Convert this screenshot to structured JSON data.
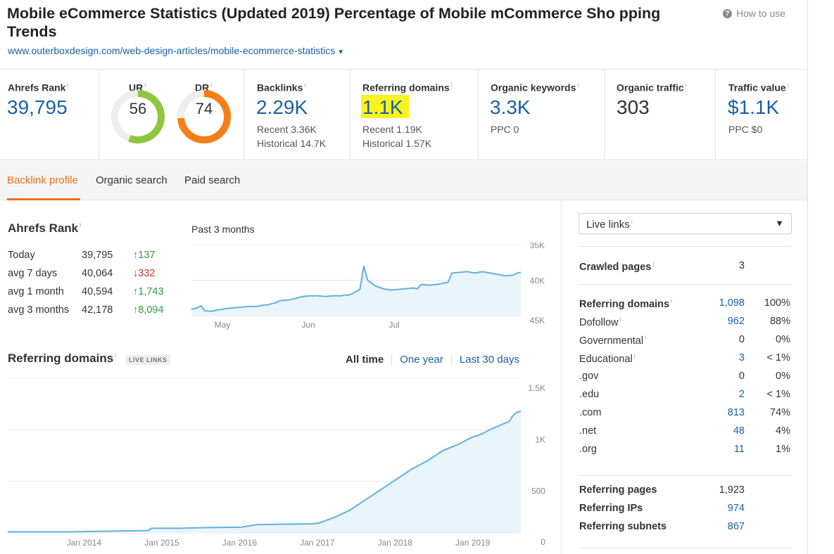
{
  "header": {
    "title": "Mobile eCommerce Statistics (Updated 2019) Percentage of Mobile mCommerce Sho pping Trends",
    "url": "www.outerboxdesign.com/web-design-articles/mobile-ecommerce-statistics",
    "help_link": "How to use",
    "help_icon": "question-circle-icon"
  },
  "metrics": {
    "ahrefs_rank": {
      "label": "Ahrefs Rank",
      "value": "39,795"
    },
    "ur": {
      "label": "UR",
      "value": "56",
      "score": 56,
      "color": "#8dc63f"
    },
    "dr": {
      "label": "DR",
      "value": "74",
      "score": 74,
      "color": "#f57f17"
    },
    "backlinks": {
      "label": "Backlinks",
      "value": "2.29K",
      "recent": "Recent 3.36K",
      "historical": "Historical 14.7K"
    },
    "referring_domains": {
      "label": "Referring domains",
      "value": "1.1K",
      "recent": "Recent 1.19K",
      "historical": "Historical 1.57K",
      "highlight_color": "#f9f31f"
    },
    "organic_keywords": {
      "label": "Organic keywords",
      "value": "3.3K",
      "sub": "PPC 0"
    },
    "organic_traffic": {
      "label": "Organic traffic",
      "value": "303"
    },
    "traffic_value": {
      "label": "Traffic value",
      "value": "$1.1K",
      "sub": "PPC $0"
    },
    "info_glyph": "i"
  },
  "tabs": [
    {
      "label": "Backlink profile",
      "active": true
    },
    {
      "label": "Organic search",
      "active": false
    },
    {
      "label": "Paid search",
      "active": false
    }
  ],
  "rank_section": {
    "title": "Ahrefs Rank",
    "period": "Past 3 months",
    "rows": [
      {
        "label": "Today",
        "value": "39,795",
        "change": "↑137",
        "dir": "up"
      },
      {
        "label": "avg 7 days",
        "value": "40,064",
        "change": "↓332",
        "dir": "down"
      },
      {
        "label": "avg 1 month",
        "value": "40,594",
        "change": "↑1,743",
        "dir": "up"
      },
      {
        "label": "avg 3 months",
        "value": "42,178",
        "change": "↑8,094",
        "dir": "up"
      }
    ]
  },
  "referring_section": {
    "title": "Referring domains",
    "badge": "LIVE LINKS",
    "filters": {
      "all_time": "All time",
      "one_year": "One year",
      "last_30": "Last 30 days"
    }
  },
  "right_panel": {
    "select_value": "Live links",
    "crawled_pages": {
      "label": "Crawled pages",
      "value": "3"
    },
    "domains_header": {
      "label": "Referring domains",
      "value": "1,098",
      "pct": "100%"
    },
    "domain_rows": [
      {
        "label": "Dofollow",
        "info": true,
        "value": "962",
        "pct": "88%",
        "link": true
      },
      {
        "label": "Governmental",
        "info": true,
        "value": "0",
        "pct": "0%",
        "link": false
      },
      {
        "label": "Educational",
        "info": true,
        "value": "3",
        "pct": "< 1%",
        "link": true
      },
      {
        "label": ".gov",
        "info": false,
        "value": "0",
        "pct": "0%",
        "link": false
      },
      {
        "label": ".edu",
        "info": false,
        "value": "2",
        "pct": "< 1%",
        "link": true
      },
      {
        "label": ".com",
        "info": false,
        "value": "813",
        "pct": "74%",
        "link": true
      },
      {
        "label": ".net",
        "info": false,
        "value": "48",
        "pct": "4%",
        "link": true
      },
      {
        "label": ".org",
        "info": false,
        "value": "11",
        "pct": "1%",
        "link": true
      }
    ],
    "pages_rows": [
      {
        "label": "Referring pages",
        "value": "1,923",
        "link": false
      },
      {
        "label": "Referring IPs",
        "value": "974",
        "link": true
      },
      {
        "label": "Referring subnets",
        "value": "867",
        "link": true
      }
    ]
  },
  "chart_data": [
    {
      "type": "area",
      "name": "ahrefs-rank-past-3-months",
      "x_ticks": [
        "May",
        "Jun",
        "Jul"
      ],
      "y_ticks": [
        "35K",
        "40K",
        "45K"
      ],
      "ylim": [
        45000,
        35000
      ],
      "y_inverted": true,
      "color": "#5fb1e0",
      "fill": "#eaf4fb",
      "days": [
        0,
        3,
        5,
        7,
        10,
        14,
        18,
        22,
        26,
        30,
        34,
        38,
        40,
        42,
        44,
        46,
        50,
        54,
        58,
        62,
        66,
        70,
        74,
        78,
        80,
        82,
        84,
        86,
        88,
        90,
        92,
        96,
        100,
        104,
        108,
        112,
        116,
        118,
        120,
        124,
        128,
        132,
        134,
        136,
        140,
        144,
        148,
        152,
        156,
        160,
        164,
        168,
        170,
        172
      ],
      "values": [
        44100,
        43900,
        43600,
        44300,
        44400,
        44200,
        44000,
        43900,
        43800,
        43700,
        43700,
        43500,
        43500,
        43300,
        43200,
        42900,
        42800,
        42600,
        42300,
        42200,
        42200,
        42300,
        42200,
        42200,
        42100,
        42100,
        41900,
        41600,
        41300,
        38000,
        40000,
        40800,
        41200,
        41400,
        41300,
        41200,
        41100,
        41200,
        40600,
        40700,
        40600,
        40400,
        40300,
        39000,
        38900,
        38800,
        39000,
        38800,
        39000,
        39200,
        39400,
        39300,
        39000,
        38900
      ]
    },
    {
      "type": "area",
      "name": "referring-domains-all-time",
      "x_ticks": [
        "Jan 2014",
        "Jan 2015",
        "Jan 2016",
        "Jan 2017",
        "Jan 2018",
        "Jan 2019"
      ],
      "y_ticks": [
        "1.5K",
        "1K",
        "500",
        "0"
      ],
      "ylim": [
        0,
        1500
      ],
      "color": "#5fb1e0",
      "fill": "#eaf4fb",
      "years": [
        2013.0,
        2013.8,
        2014.5,
        2014.8,
        2014.85,
        2015.2,
        2015.6,
        2016.0,
        2016.2,
        2016.6,
        2016.9,
        2017.0,
        2017.2,
        2017.4,
        2017.6,
        2017.8,
        2018.0,
        2018.2,
        2018.4,
        2018.6,
        2018.8,
        2018.95,
        2019.1,
        2019.2,
        2019.35,
        2019.45,
        2019.5,
        2019.55,
        2019.6
      ],
      "values": [
        10,
        10,
        20,
        22,
        45,
        45,
        52,
        55,
        80,
        85,
        88,
        95,
        150,
        220,
        320,
        420,
        520,
        620,
        700,
        800,
        860,
        920,
        960,
        1000,
        1050,
        1080,
        1140,
        1170,
        1180
      ]
    }
  ]
}
